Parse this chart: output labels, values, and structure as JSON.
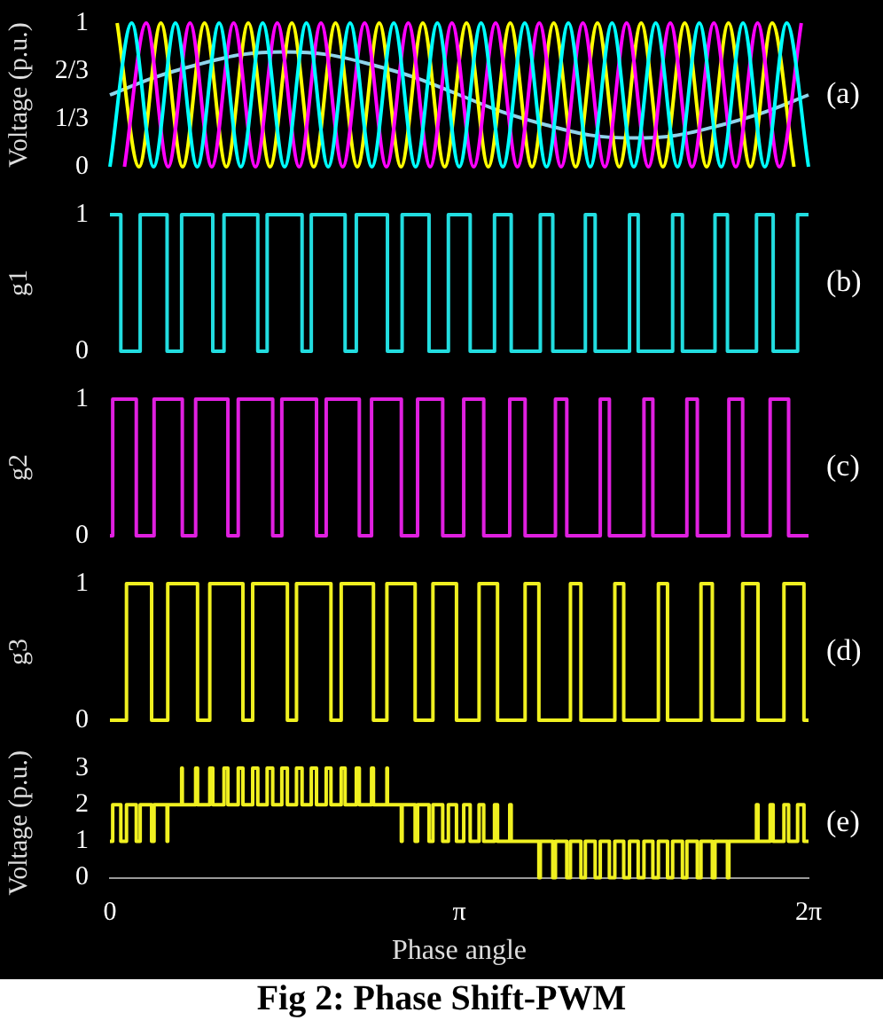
{
  "chart_data": [
    {
      "type": "line",
      "ylabel": "Voltage (p.u.)",
      "xlim": [
        0,
        6.2832
      ],
      "ylim": [
        0,
        1
      ],
      "yticks": [
        0,
        {
          "value": 0.3333,
          "label": "1/3"
        },
        {
          "value": 0.6667,
          "label": "2/3"
        },
        1
      ],
      "tick_labels": "y",
      "marker": "none",
      "annotations": [
        "(a)"
      ],
      "series": [
        {
          "color": "#00ffff",
          "x": [
            0,
            0.196,
            0.393,
            0.589,
            0.785,
            0.982,
            1.178,
            1.374,
            1.571,
            1.767,
            1.963,
            2.16,
            2.356,
            2.553,
            2.749,
            2.945,
            3.142,
            3.338,
            3.534,
            3.731,
            3.927,
            4.123,
            4.32,
            4.516,
            4.712,
            4.909,
            5.105,
            5.301,
            5.498,
            5.694,
            5.89,
            6.087,
            6.283
          ],
          "values": [
            0,
            1,
            0,
            1,
            0,
            1,
            0,
            1,
            0,
            1,
            0,
            1,
            0,
            1,
            0,
            1,
            0,
            1,
            0,
            1,
            0,
            1,
            0,
            1,
            0,
            1,
            0,
            1,
            0,
            1,
            0,
            1,
            0
          ]
        },
        {
          "color": "#ff00ff",
          "x": [
            0.131,
            0.327,
            0.524,
            0.72,
            0.916,
            1.113,
            1.309,
            1.505,
            1.702,
            1.898,
            2.094,
            2.291,
            2.487,
            2.683,
            2.88,
            3.076,
            3.272,
            3.469,
            3.665,
            3.862,
            4.058,
            4.254,
            4.451,
            4.647,
            4.843,
            5.04,
            5.236,
            5.432,
            5.629,
            5.825,
            6.021,
            6.218
          ],
          "values": [
            0,
            1,
            0,
            1,
            0,
            1,
            0,
            1,
            0,
            1,
            0,
            1,
            0,
            1,
            0,
            1,
            0,
            1,
            0,
            1,
            0,
            1,
            0,
            1,
            0,
            1,
            0,
            1,
            0,
            1,
            0,
            1
          ]
        },
        {
          "color": "#ffff00",
          "x": [
            0.065,
            0.262,
            0.458,
            0.654,
            0.851,
            1.047,
            1.244,
            1.44,
            1.636,
            1.833,
            2.029,
            2.225,
            2.422,
            2.618,
            2.814,
            3.011,
            3.207,
            3.403,
            3.6,
            3.796,
            3.992,
            4.189,
            4.385,
            4.581,
            4.778,
            4.974,
            5.17,
            5.367,
            5.563,
            5.76,
            5.956,
            6.152
          ],
          "values": [
            1,
            0,
            1,
            0,
            1,
            0,
            1,
            0,
            1,
            0,
            1,
            0,
            1,
            0,
            1,
            0,
            1,
            0,
            1,
            0,
            1,
            0,
            1,
            0,
            1,
            0,
            1,
            0,
            1,
            0,
            1,
            0
          ]
        },
        {
          "color": "#8fd3ea",
          "x": [
            0,
            0.393,
            0.785,
            1.178,
            1.571,
            1.963,
            2.356,
            2.749,
            3.142,
            3.534,
            3.927,
            4.32,
            4.712,
            5.105,
            5.498,
            5.89,
            6.283
          ],
          "values": [
            0.5,
            0.62,
            0.71,
            0.78,
            0.8,
            0.78,
            0.71,
            0.62,
            0.5,
            0.38,
            0.29,
            0.22,
            0.2,
            0.22,
            0.29,
            0.38,
            0.5
          ]
        }
      ]
    },
    {
      "type": "step",
      "ylabel": "g1",
      "xlim": [
        0,
        6.2832
      ],
      "ylim": [
        0,
        1
      ],
      "yticks": [
        0,
        1
      ],
      "tick_labels": "y",
      "marker": "none",
      "annotations": [
        "(b)"
      ],
      "series": [
        {
          "color": "#22dde0",
          "x": [
            0,
            0.098,
            0.272,
            0.514,
            0.645,
            0.925,
            1.026,
            1.33,
            1.414,
            1.728,
            1.811,
            2.115,
            2.216,
            2.496,
            2.628,
            2.87,
            3.044,
            3.24,
            3.459,
            3.609,
            3.871,
            3.983,
            4.276,
            4.364,
            4.673,
            4.751,
            5.061,
            5.149,
            5.442,
            5.554,
            5.815,
            5.965,
            6.185,
            6.283
          ],
          "values": [
            1,
            0,
            1,
            0,
            1,
            0,
            1,
            0,
            1,
            0,
            1,
            0,
            1,
            0,
            1,
            0,
            1,
            0,
            1,
            0,
            1,
            0,
            1,
            0,
            1,
            0,
            1,
            0,
            1,
            0,
            1,
            0,
            1,
            1
          ]
        }
      ]
    },
    {
      "type": "step",
      "ylabel": "g2",
      "xlim": [
        0,
        6.2832
      ],
      "ylim": [
        0,
        1
      ],
      "yticks": [
        0,
        1
      ],
      "tick_labels": "y",
      "marker": "none",
      "annotations": [
        "(c)"
      ],
      "series": [
        {
          "color": "#e020e0",
          "x": [
            0,
            0.025,
            0.237,
            0.397,
            0.651,
            0.771,
            1.061,
            1.154,
            1.464,
            1.546,
            1.858,
            1.945,
            2.243,
            2.353,
            2.621,
            2.767,
            2.993,
            3.182,
            3.362,
            3.596,
            3.734,
            4.007,
            4.109,
            4.41,
            4.492,
            4.803,
            4.883,
            5.189,
            5.283,
            5.567,
            5.691,
            5.938,
            6.104,
            6.283
          ],
          "values": [
            0,
            1,
            0,
            1,
            0,
            1,
            0,
            1,
            0,
            1,
            0,
            1,
            0,
            1,
            0,
            1,
            0,
            1,
            0,
            1,
            0,
            1,
            0,
            1,
            0,
            1,
            0,
            1,
            0,
            1,
            0,
            1,
            0,
            0
          ]
        }
      ]
    },
    {
      "type": "step",
      "ylabel": "g3",
      "xlim": [
        0,
        6.2832
      ],
      "ylim": [
        0,
        1
      ],
      "yticks": [
        0,
        1
      ],
      "tick_labels": "y",
      "marker": "none",
      "annotations": [
        "(d)"
      ],
      "series": [
        {
          "color": "#f0f020",
          "x": [
            0,
            0.149,
            0.375,
            0.52,
            0.788,
            0.898,
            1.196,
            1.284,
            1.596,
            1.678,
            1.988,
            2.08,
            2.37,
            2.491,
            2.745,
            2.905,
            3.117,
            3.32,
            3.486,
            3.734,
            3.858,
            4.142,
            4.236,
            4.541,
            4.621,
            4.933,
            5.015,
            5.316,
            5.418,
            5.691,
            5.829,
            6.062,
            6.242,
            6.283
          ],
          "values": [
            0,
            1,
            0,
            1,
            0,
            1,
            0,
            1,
            0,
            1,
            0,
            1,
            0,
            1,
            0,
            1,
            0,
            1,
            0,
            1,
            0,
            1,
            0,
            1,
            0,
            1,
            0,
            1,
            0,
            1,
            0,
            1,
            0,
            0
          ]
        }
      ]
    },
    {
      "type": "step",
      "ylabel": "Voltage (p.u.)",
      "xlabel": "Phase angle",
      "xlim": [
        0,
        6.2832
      ],
      "xticks": [
        0,
        {
          "value": 3.1416,
          "label": "π"
        },
        {
          "value": 6.2832,
          "label": "2π"
        }
      ],
      "ylim": [
        0,
        3
      ],
      "yticks": [
        0,
        1,
        2,
        3
      ],
      "marker": "none",
      "annotations": [
        "(e)",
        "Fig 2: Phase Shift-PWM"
      ],
      "series": [
        {
          "color": "#f0f020",
          "x": [
            0,
            0.025,
            0.098,
            0.149,
            0.237,
            0.272,
            0.375,
            0.397,
            0.514,
            0.52,
            0.645,
            0.651,
            0.771,
            0.788,
            0.898,
            0.925,
            1.026,
            1.061,
            1.154,
            1.196,
            1.284,
            1.33,
            1.414,
            1.464,
            1.546,
            1.596,
            1.678,
            1.728,
            1.811,
            1.858,
            1.945,
            1.988,
            2.08,
            2.115,
            2.216,
            2.243,
            2.353,
            2.37,
            2.491,
            2.496,
            2.621,
            2.628,
            2.745,
            2.767,
            2.87,
            2.905,
            2.993,
            3.044,
            3.117,
            3.182,
            3.24,
            3.32,
            3.362,
            3.459,
            3.486,
            3.596,
            3.609,
            3.734,
            3.858,
            3.871,
            3.983,
            4.007,
            4.109,
            4.142,
            4.236,
            4.276,
            4.364,
            4.41,
            4.492,
            4.541,
            4.621,
            4.673,
            4.751,
            4.803,
            4.883,
            4.933,
            5.015,
            5.061,
            5.149,
            5.189,
            5.283,
            5.316,
            5.418,
            5.442,
            5.554,
            5.567,
            5.691,
            5.815,
            5.829,
            5.938,
            5.965,
            6.062,
            6.104,
            6.185,
            6.242,
            6.283
          ],
          "values": [
            1,
            2,
            1,
            2,
            1,
            2,
            1,
            2,
            1,
            2,
            3,
            2,
            3,
            2,
            3,
            2,
            3,
            2,
            3,
            2,
            3,
            2,
            3,
            2,
            3,
            2,
            3,
            2,
            3,
            2,
            3,
            2,
            3,
            2,
            3,
            2,
            3,
            2,
            3,
            2,
            1,
            2,
            1,
            2,
            1,
            2,
            1,
            2,
            1,
            2,
            1,
            2,
            1,
            2,
            1,
            2,
            1,
            1,
            0,
            1,
            0,
            1,
            0,
            1,
            0,
            1,
            0,
            1,
            0,
            1,
            0,
            1,
            0,
            1,
            0,
            1,
            0,
            1,
            0,
            1,
            0,
            1,
            0,
            1,
            0,
            1,
            1,
            2,
            1,
            2,
            1,
            2,
            1,
            2,
            1,
            1
          ]
        }
      ]
    }
  ]
}
